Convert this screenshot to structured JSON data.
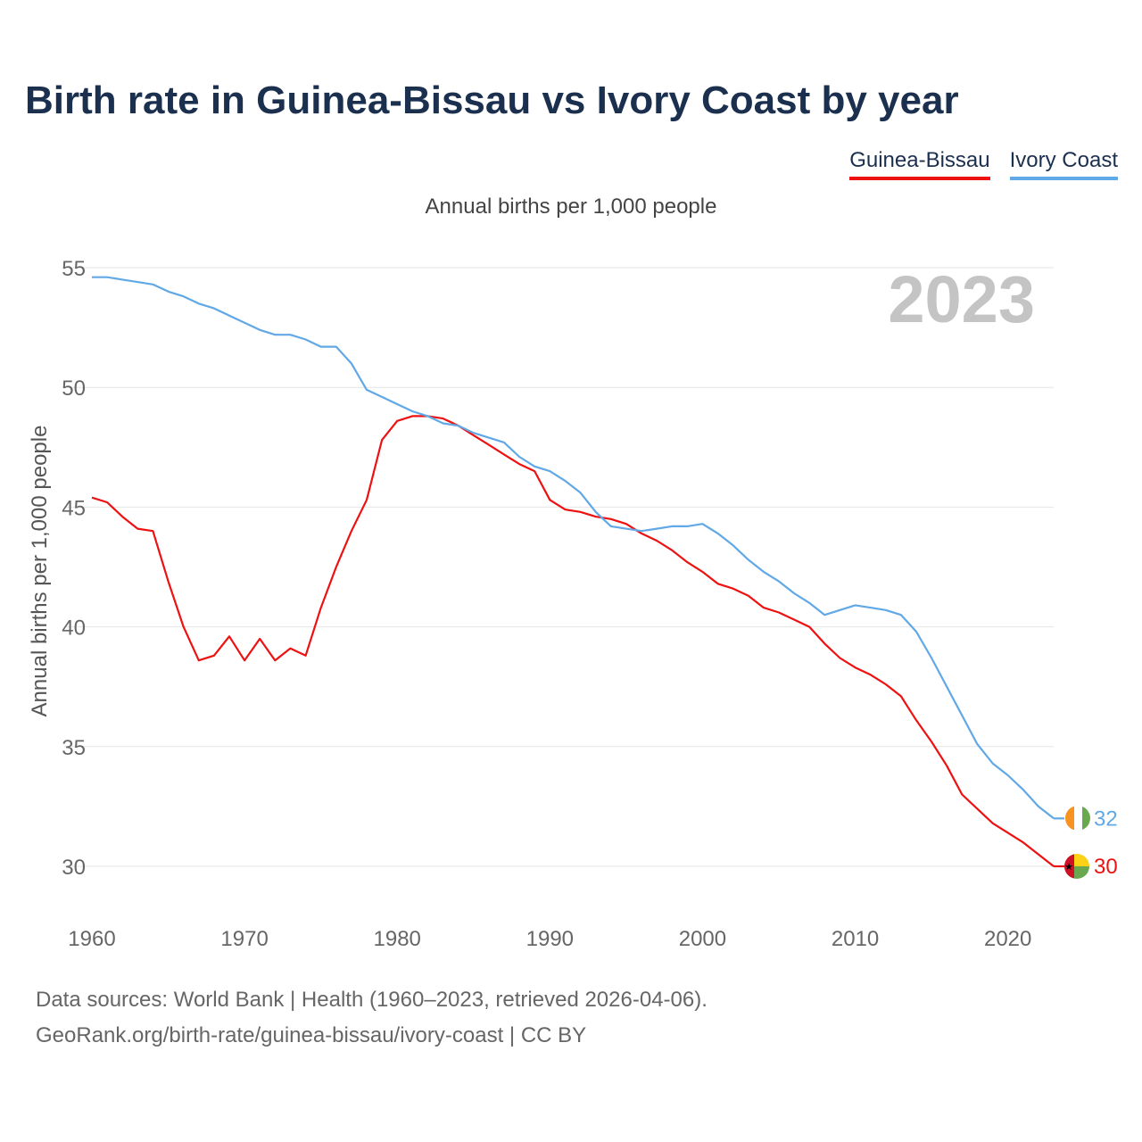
{
  "title": "Birth rate in Guinea-Bissau vs Ivory Coast by year",
  "subtitle": "Annual births per 1,000 people",
  "legend": {
    "guinea_bissau": "Guinea-Bissau",
    "ivory_coast": "Ivory Coast"
  },
  "colors": {
    "guinea_bissau": "#ee1111",
    "ivory_coast": "#60a8e6",
    "title": "#1b2f4e",
    "grid": "#e6e6e6"
  },
  "footer": {
    "line1": "Data sources: World Bank | Health (1960–2023, retrieved 2026-04-06).",
    "line2": "GeoRank.org/birth-rate/guinea-bissau/ivory-coast | CC BY"
  },
  "chart_data": {
    "type": "line",
    "title": "Birth rate in Guinea-Bissau vs Ivory Coast by year",
    "ylabel": "Annual births per 1,000 people",
    "xlabel": "",
    "year_label": "2023",
    "xlim": [
      1960,
      2023
    ],
    "ylim": [
      28,
      55.5
    ],
    "x_ticks": [
      1960,
      1970,
      1980,
      1990,
      2000,
      2010,
      2020
    ],
    "y_ticks": [
      30,
      35,
      40,
      45,
      50,
      55
    ],
    "grid": true,
    "x": [
      1960,
      1961,
      1962,
      1963,
      1964,
      1965,
      1966,
      1967,
      1968,
      1969,
      1970,
      1971,
      1972,
      1973,
      1974,
      1975,
      1976,
      1977,
      1978,
      1979,
      1980,
      1981,
      1982,
      1983,
      1984,
      1985,
      1986,
      1987,
      1988,
      1989,
      1990,
      1991,
      1992,
      1993,
      1994,
      1995,
      1996,
      1997,
      1998,
      1999,
      2000,
      2001,
      2002,
      2003,
      2004,
      2005,
      2006,
      2007,
      2008,
      2009,
      2010,
      2011,
      2012,
      2013,
      2014,
      2015,
      2016,
      2017,
      2018,
      2019,
      2020,
      2021,
      2022,
      2023
    ],
    "series": [
      {
        "name": "Guinea-Bissau",
        "color": "#ee1111",
        "end_label": "30",
        "values": [
          45.4,
          45.2,
          44.6,
          44.1,
          44.0,
          41.9,
          40.0,
          38.6,
          38.8,
          39.6,
          38.6,
          39.5,
          38.6,
          39.1,
          38.8,
          40.8,
          42.5,
          44.0,
          45.3,
          47.8,
          48.6,
          48.8,
          48.8,
          48.7,
          48.4,
          48.0,
          47.6,
          47.2,
          46.8,
          46.5,
          45.3,
          44.9,
          44.8,
          44.6,
          44.5,
          44.3,
          43.9,
          43.6,
          43.2,
          42.7,
          42.3,
          41.8,
          41.6,
          41.3,
          40.8,
          40.6,
          40.3,
          40.0,
          39.3,
          38.7,
          38.3,
          38.0,
          37.6,
          37.1,
          36.1,
          35.2,
          34.2,
          33.0,
          32.4,
          31.8,
          31.4,
          31.0,
          30.5,
          30.0
        ]
      },
      {
        "name": "Ivory Coast",
        "color": "#60a8e6",
        "end_label": "32",
        "values": [
          54.6,
          54.6,
          54.5,
          54.4,
          54.3,
          54.0,
          53.8,
          53.5,
          53.3,
          53.0,
          52.7,
          52.4,
          52.2,
          52.2,
          52.0,
          51.7,
          51.7,
          51.0,
          49.9,
          49.6,
          49.3,
          49.0,
          48.8,
          48.5,
          48.4,
          48.1,
          47.9,
          47.7,
          47.1,
          46.7,
          46.5,
          46.1,
          45.6,
          44.8,
          44.2,
          44.1,
          44.0,
          44.1,
          44.2,
          44.2,
          44.3,
          43.9,
          43.4,
          42.8,
          42.3,
          41.9,
          41.4,
          41.0,
          40.5,
          40.7,
          40.9,
          40.8,
          40.7,
          40.5,
          39.8,
          38.7,
          37.5,
          36.3,
          35.1,
          34.3,
          33.8,
          33.2,
          32.5,
          32.0
        ]
      }
    ]
  }
}
